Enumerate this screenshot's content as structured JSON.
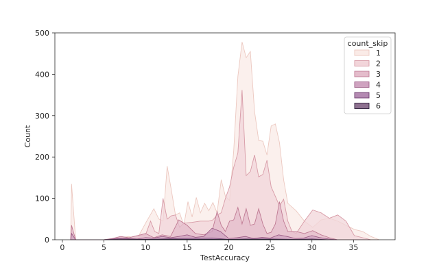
{
  "chart_data": {
    "type": "area",
    "title": "",
    "xlabel": "TestAccuracy",
    "ylabel": "Count",
    "xlim": [
      -0.9,
      40
    ],
    "ylim": [
      0,
      500
    ],
    "xticks": [
      0,
      5,
      10,
      15,
      20,
      25,
      30,
      35
    ],
    "yticks": [
      0,
      100,
      200,
      300,
      400,
      500
    ],
    "grid": false,
    "legend": {
      "title": "count_skip",
      "placement": "top-right"
    },
    "series": [
      {
        "name": "1",
        "fill": "#faebe7",
        "stroke": "#ecc8c0",
        "points": [
          [
            1,
            0
          ],
          [
            1.1,
            135
          ],
          [
            1.6,
            0
          ],
          [
            2,
            0
          ],
          [
            3,
            0
          ],
          [
            5,
            0
          ],
          [
            6,
            3
          ],
          [
            7,
            5
          ],
          [
            8,
            8
          ],
          [
            9,
            3
          ],
          [
            10,
            40
          ],
          [
            11,
            75
          ],
          [
            11.6,
            50
          ],
          [
            12.1,
            45
          ],
          [
            12.6,
            178
          ],
          [
            13.1,
            120
          ],
          [
            13.6,
            60
          ],
          [
            14.1,
            65
          ],
          [
            14.6,
            35
          ],
          [
            15.1,
            92
          ],
          [
            15.6,
            55
          ],
          [
            16.1,
            102
          ],
          [
            16.6,
            65
          ],
          [
            17.1,
            88
          ],
          [
            17.6,
            70
          ],
          [
            18.1,
            90
          ],
          [
            18.6,
            65
          ],
          [
            19.1,
            145
          ],
          [
            19.6,
            105
          ],
          [
            20.1,
            95
          ],
          [
            20.6,
            215
          ],
          [
            21.1,
            395
          ],
          [
            21.6,
            478
          ],
          [
            22.1,
            440
          ],
          [
            22.6,
            455
          ],
          [
            23.1,
            310
          ],
          [
            23.6,
            240
          ],
          [
            24.1,
            238
          ],
          [
            24.6,
            205
          ],
          [
            25.1,
            275
          ],
          [
            25.6,
            280
          ],
          [
            26.1,
            235
          ],
          [
            26.6,
            145
          ],
          [
            27.1,
            88
          ],
          [
            28.1,
            70
          ],
          [
            29.1,
            45
          ],
          [
            30.1,
            30
          ],
          [
            31.1,
            48
          ],
          [
            32.1,
            52
          ],
          [
            33.1,
            45
          ],
          [
            34.1,
            35
          ],
          [
            35.1,
            25
          ],
          [
            36.1,
            20
          ],
          [
            37.1,
            8
          ],
          [
            38.1,
            0
          ]
        ]
      },
      {
        "name": "2",
        "fill": "#f2d5da",
        "stroke": "#d79aa6",
        "points": [
          [
            1,
            0
          ],
          [
            2,
            0
          ],
          [
            5,
            0
          ],
          [
            8,
            5
          ],
          [
            9,
            10
          ],
          [
            10,
            12
          ],
          [
            10.6,
            45
          ],
          [
            11.1,
            20
          ],
          [
            11.6,
            15
          ],
          [
            12.1,
            100
          ],
          [
            12.6,
            50
          ],
          [
            13.1,
            58
          ],
          [
            13.6,
            60
          ],
          [
            14.1,
            30
          ],
          [
            14.6,
            40
          ],
          [
            15.6,
            42
          ],
          [
            16.6,
            45
          ],
          [
            17.6,
            45
          ],
          [
            18.1,
            48
          ],
          [
            18.6,
            60
          ],
          [
            19.1,
            65
          ],
          [
            19.6,
            100
          ],
          [
            20.1,
            128
          ],
          [
            20.6,
            175
          ],
          [
            21.1,
            210
          ],
          [
            21.6,
            362
          ],
          [
            22.1,
            155
          ],
          [
            22.6,
            165
          ],
          [
            23.1,
            205
          ],
          [
            23.6,
            152
          ],
          [
            24.1,
            158
          ],
          [
            24.6,
            192
          ],
          [
            25.1,
            128
          ],
          [
            25.6,
            105
          ],
          [
            26.1,
            82
          ],
          [
            26.6,
            98
          ],
          [
            27.1,
            45
          ],
          [
            27.6,
            20
          ],
          [
            28.1,
            15
          ],
          [
            29.1,
            45
          ],
          [
            30.1,
            72
          ],
          [
            31.1,
            65
          ],
          [
            32.1,
            52
          ],
          [
            33.1,
            60
          ],
          [
            34.1,
            45
          ],
          [
            35.1,
            10
          ],
          [
            36.1,
            5
          ],
          [
            37.1,
            0
          ]
        ]
      },
      {
        "name": "3",
        "fill": "#e4bccb",
        "stroke": "#bf7a93",
        "points": [
          [
            1,
            0
          ],
          [
            1.1,
            35
          ],
          [
            1.6,
            0
          ],
          [
            5,
            0
          ],
          [
            6,
            3
          ],
          [
            7,
            8
          ],
          [
            8,
            5
          ],
          [
            9,
            10
          ],
          [
            10,
            15
          ],
          [
            11,
            5
          ],
          [
            12,
            12
          ],
          [
            13,
            8
          ],
          [
            14,
            48
          ],
          [
            15,
            35
          ],
          [
            16,
            15
          ],
          [
            17,
            12
          ],
          [
            18,
            20
          ],
          [
            18.6,
            68
          ],
          [
            19.1,
            35
          ],
          [
            19.6,
            20
          ],
          [
            20.1,
            45
          ],
          [
            20.6,
            48
          ],
          [
            21.1,
            78
          ],
          [
            21.6,
            38
          ],
          [
            22.1,
            75
          ],
          [
            22.6,
            35
          ],
          [
            23.1,
            38
          ],
          [
            23.6,
            75
          ],
          [
            24.1,
            38
          ],
          [
            24.6,
            15
          ],
          [
            25.1,
            18
          ],
          [
            25.6,
            38
          ],
          [
            26.1,
            92
          ],
          [
            26.6,
            45
          ],
          [
            27.1,
            20
          ],
          [
            28.1,
            20
          ],
          [
            29.1,
            15
          ],
          [
            30.1,
            22
          ],
          [
            31.1,
            12
          ],
          [
            32.1,
            5
          ],
          [
            33.1,
            0
          ]
        ]
      },
      {
        "name": "4",
        "fill": "#cfa3c0",
        "stroke": "#9c5c86",
        "points": [
          [
            1,
            0
          ],
          [
            1.1,
            15
          ],
          [
            1.6,
            0
          ],
          [
            5,
            0
          ],
          [
            6,
            2
          ],
          [
            7,
            4
          ],
          [
            8,
            3
          ],
          [
            9,
            2
          ],
          [
            10,
            5
          ],
          [
            11,
            4
          ],
          [
            12,
            8
          ],
          [
            13,
            5
          ],
          [
            14,
            8
          ],
          [
            15,
            12
          ],
          [
            16,
            6
          ],
          [
            17,
            8
          ],
          [
            18,
            28
          ],
          [
            19,
            20
          ],
          [
            20,
            3
          ],
          [
            21,
            5
          ],
          [
            22,
            8
          ],
          [
            23,
            3
          ],
          [
            24,
            6
          ],
          [
            25,
            4
          ],
          [
            26,
            12
          ],
          [
            27,
            8
          ],
          [
            28,
            3
          ],
          [
            29,
            4
          ],
          [
            30,
            10
          ],
          [
            31,
            5
          ],
          [
            32,
            2
          ],
          [
            33,
            0
          ]
        ]
      },
      {
        "name": "5",
        "fill": "#b48ab2",
        "stroke": "#6e3f6e",
        "points": [
          [
            5,
            0
          ],
          [
            7,
            2
          ],
          [
            10,
            1
          ],
          [
            14,
            3
          ],
          [
            18,
            4
          ],
          [
            20,
            1
          ],
          [
            22,
            2
          ],
          [
            25,
            2
          ],
          [
            28,
            1
          ],
          [
            30,
            2
          ],
          [
            32,
            0
          ]
        ]
      },
      {
        "name": "6",
        "fill": "#8e7190",
        "stroke": "#2d1e3a",
        "points": [
          [
            5,
            0
          ],
          [
            10,
            1
          ],
          [
            18,
            1
          ],
          [
            25,
            1
          ],
          [
            32,
            0
          ]
        ]
      }
    ]
  }
}
